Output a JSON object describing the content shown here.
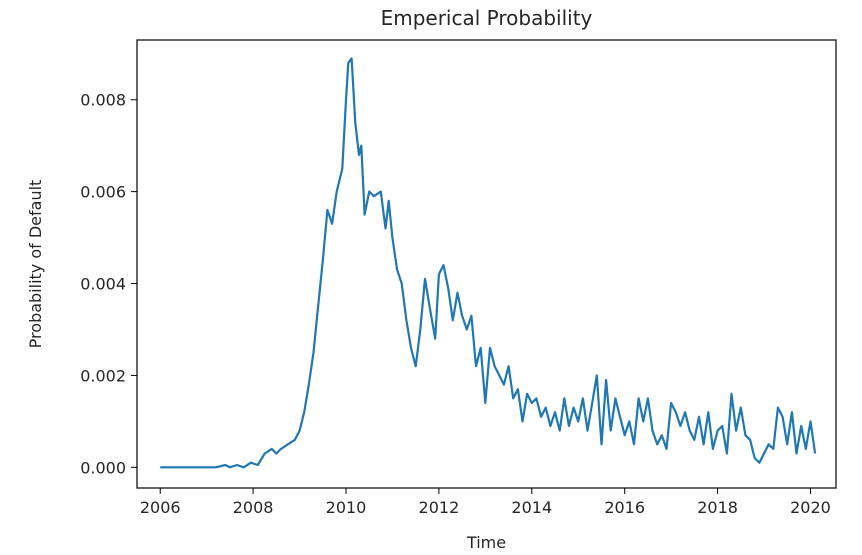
{
  "chart_data": {
    "type": "line",
    "title": "Emperical Probability",
    "xlabel": "Time",
    "ylabel": "Probability of Default",
    "xlim": [
      2005.5,
      2020.55
    ],
    "ylim": [
      -0.00045,
      0.0093
    ],
    "xticks": [
      2006,
      2008,
      2010,
      2012,
      2014,
      2016,
      2018,
      2020
    ],
    "xtick_labels": [
      "2006",
      "2008",
      "2010",
      "2012",
      "2014",
      "2016",
      "2018",
      "2020"
    ],
    "yticks": [
      0.0,
      0.002,
      0.004,
      0.006,
      0.008
    ],
    "ytick_labels": [
      "0.000",
      "0.002",
      "0.004",
      "0.006",
      "0.008"
    ],
    "grid": false,
    "series": [
      {
        "color": "#1f77b4",
        "x": [
          2006.0,
          2006.5,
          2007.0,
          2007.2,
          2007.4,
          2007.5,
          2007.65,
          2007.8,
          2007.95,
          2008.1,
          2008.25,
          2008.4,
          2008.5,
          2008.6,
          2008.75,
          2008.9,
          2009.0,
          2009.1,
          2009.2,
          2009.3,
          2009.4,
          2009.5,
          2009.6,
          2009.7,
          2009.8,
          2009.92,
          2010.0,
          2010.05,
          2010.12,
          2010.2,
          2010.28,
          2010.33,
          2010.4,
          2010.5,
          2010.6,
          2010.75,
          2010.85,
          2010.92,
          2011.0,
          2011.1,
          2011.2,
          2011.3,
          2011.4,
          2011.5,
          2011.6,
          2011.7,
          2011.8,
          2011.92,
          2012.0,
          2012.1,
          2012.2,
          2012.3,
          2012.4,
          2012.5,
          2012.6,
          2012.7,
          2012.8,
          2012.9,
          2013.0,
          2013.1,
          2013.2,
          2013.3,
          2013.4,
          2013.5,
          2013.6,
          2013.7,
          2013.8,
          2013.9,
          2014.0,
          2014.1,
          2014.2,
          2014.3,
          2014.4,
          2014.5,
          2014.6,
          2014.7,
          2014.8,
          2014.9,
          2015.0,
          2015.1,
          2015.2,
          2015.3,
          2015.4,
          2015.5,
          2015.6,
          2015.7,
          2015.8,
          2015.9,
          2016.0,
          2016.1,
          2016.2,
          2016.3,
          2016.4,
          2016.5,
          2016.6,
          2016.7,
          2016.8,
          2016.9,
          2017.0,
          2017.1,
          2017.2,
          2017.3,
          2017.4,
          2017.5,
          2017.6,
          2017.7,
          2017.8,
          2017.9,
          2018.0,
          2018.1,
          2018.2,
          2018.3,
          2018.4,
          2018.5,
          2018.6,
          2018.7,
          2018.8,
          2018.9,
          2019.0,
          2019.1,
          2019.2,
          2019.3,
          2019.4,
          2019.5,
          2019.6,
          2019.7,
          2019.8,
          2019.9,
          2020.0,
          2020.1
        ],
        "y": [
          0.0,
          0.0,
          0.0,
          0.0,
          5e-05,
          0.0,
          5e-05,
          0.0,
          0.0001,
          5e-05,
          0.0003,
          0.0004,
          0.0003,
          0.0004,
          0.0005,
          0.0006,
          0.0008,
          0.0012,
          0.0018,
          0.0025,
          0.0035,
          0.0045,
          0.0056,
          0.0053,
          0.006,
          0.0065,
          0.008,
          0.0088,
          0.0089,
          0.0075,
          0.0068,
          0.007,
          0.0055,
          0.006,
          0.0059,
          0.006,
          0.0052,
          0.0058,
          0.005,
          0.0043,
          0.004,
          0.0032,
          0.0026,
          0.0022,
          0.003,
          0.0041,
          0.0035,
          0.0028,
          0.0042,
          0.0044,
          0.0039,
          0.0032,
          0.0038,
          0.0033,
          0.003,
          0.0033,
          0.0022,
          0.0026,
          0.0014,
          0.0026,
          0.0022,
          0.002,
          0.0018,
          0.0022,
          0.0015,
          0.0017,
          0.001,
          0.0016,
          0.0014,
          0.0015,
          0.0011,
          0.0013,
          0.0009,
          0.0012,
          0.0008,
          0.0015,
          0.0009,
          0.0013,
          0.001,
          0.0015,
          0.0008,
          0.0014,
          0.002,
          0.0005,
          0.0019,
          0.0008,
          0.0015,
          0.0011,
          0.0007,
          0.001,
          0.0005,
          0.0015,
          0.001,
          0.0015,
          0.0008,
          0.0005,
          0.0007,
          0.0004,
          0.0014,
          0.0012,
          0.0009,
          0.0012,
          0.0008,
          0.0006,
          0.0011,
          0.0005,
          0.0012,
          0.0004,
          0.0008,
          0.0009,
          0.0003,
          0.0016,
          0.0008,
          0.0013,
          0.0007,
          0.0006,
          0.0002,
          0.0001,
          0.0003,
          0.0005,
          0.0004,
          0.0013,
          0.0011,
          0.0005,
          0.0012,
          0.0003,
          0.0009,
          0.0004,
          0.001,
          0.0003
        ]
      }
    ]
  }
}
